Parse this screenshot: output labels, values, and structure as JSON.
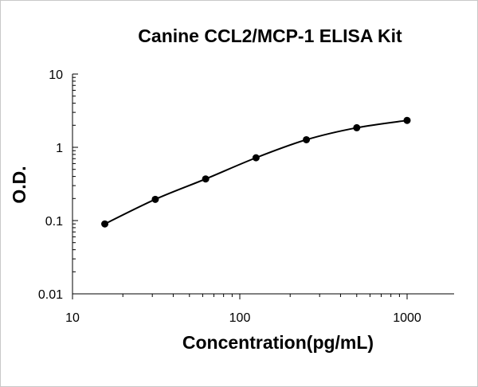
{
  "chart_data": {
    "type": "scatter",
    "title": "Canine CCL2/MCP-1 ELISA Kit",
    "xlabel": "Concentration(pg/mL)",
    "ylabel": "O.D.",
    "x_scale": "log",
    "y_scale": "log",
    "xlim": [
      10,
      1000
    ],
    "ylim": [
      0.01,
      10
    ],
    "x_ticks": [
      {
        "value": 10,
        "label": "10"
      },
      {
        "value": 100,
        "label": "100"
      },
      {
        "value": 1000,
        "label": "1000"
      }
    ],
    "y_ticks": [
      {
        "value": 10,
        "label": "10"
      },
      {
        "value": 1,
        "label": "1"
      },
      {
        "value": 0.1,
        "label": "0.1"
      },
      {
        "value": 0.01,
        "label": "0.01"
      }
    ],
    "grid": false,
    "legend": "none",
    "fit_curve": true,
    "series": [
      {
        "x": [
          15.6,
          31.25,
          62.5,
          125,
          250,
          500,
          1000
        ],
        "y": [
          0.09,
          0.195,
          0.37,
          0.72,
          1.27,
          1.85,
          2.33
        ],
        "color": "#000000"
      }
    ]
  }
}
